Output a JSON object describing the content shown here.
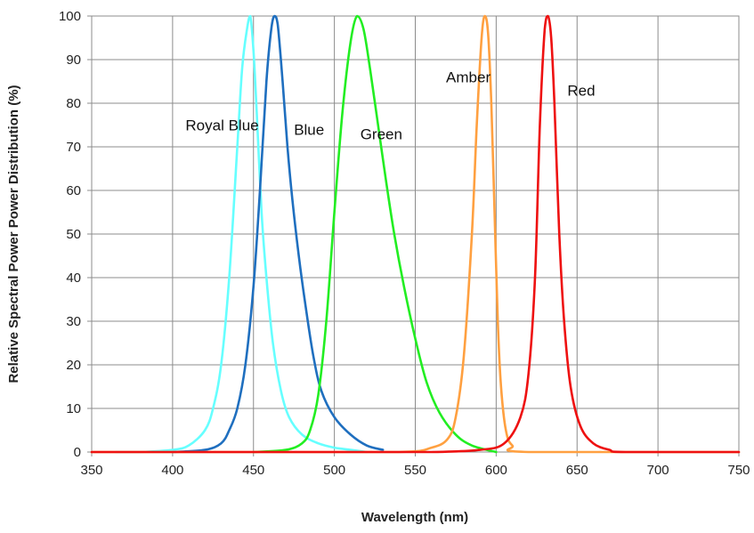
{
  "chart_data": {
    "type": "line",
    "title": "",
    "xlabel": "Wavelength (nm)",
    "ylabel": "Relative Spectral Power Power Distribution (%)",
    "xlim": [
      350,
      750
    ],
    "ylim": [
      0,
      100
    ],
    "xticks": [
      350,
      400,
      450,
      500,
      550,
      600,
      650,
      700,
      750
    ],
    "yticks": [
      0,
      10,
      20,
      30,
      40,
      50,
      60,
      70,
      80,
      90,
      100
    ],
    "grid": "vertical and horizontal",
    "legend": "none (inline labels)",
    "series": [
      {
        "name": "Royal Blue",
        "color": "#66ffff",
        "x": [
          365,
          380,
          400,
          410,
          420,
          425,
          430,
          435,
          440,
          443,
          446,
          448,
          450,
          452,
          455,
          458,
          462,
          467,
          472,
          480,
          490,
          500,
          510,
          520
        ],
        "y": [
          0,
          0,
          0.5,
          1.5,
          5,
          10,
          20,
          40,
          70,
          88,
          97,
          100,
          92,
          78,
          55,
          40,
          25,
          14,
          8,
          4,
          2,
          1,
          0.5,
          0
        ]
      },
      {
        "name": "Blue",
        "color": "#1f6fbf",
        "x": [
          400,
          420,
          430,
          435,
          440,
          445,
          450,
          454,
          458,
          461,
          463,
          465,
          468,
          471,
          474,
          478,
          482,
          487,
          492,
          500,
          510,
          520,
          530
        ],
        "y": [
          0,
          0.5,
          2,
          5,
          10,
          20,
          38,
          60,
          85,
          97,
          100,
          98,
          85,
          70,
          58,
          45,
          34,
          22,
          14,
          8,
          4,
          1.5,
          0.5
        ]
      },
      {
        "name": "Green",
        "color": "#22ee22",
        "x": [
          450,
          470,
          480,
          485,
          490,
          495,
          500,
          505,
          510,
          514,
          518,
          522,
          527,
          532,
          537,
          543,
          550,
          557,
          565,
          575,
          585,
          600
        ],
        "y": [
          0,
          0.5,
          2,
          5,
          13,
          30,
          55,
          78,
          94,
          100,
          97,
          88,
          75,
          62,
          50,
          38,
          26,
          16,
          9,
          4,
          1.5,
          0
        ]
      },
      {
        "name": "Amber",
        "color": "#ffa040",
        "x": [
          350,
          450,
          540,
          560,
          570,
          575,
          580,
          585,
          588,
          591,
          593,
          595,
          597,
          599,
          601,
          603,
          606,
          610,
          620,
          750
        ],
        "y": [
          0,
          0,
          0,
          1,
          3,
          8,
          22,
          50,
          75,
          95,
          100,
          96,
          80,
          55,
          30,
          15,
          5,
          1.5,
          0,
          0
        ]
      },
      {
        "name": "Red",
        "color": "#ee1111",
        "x": [
          350,
          500,
          560,
          590,
          605,
          615,
          620,
          624,
          627,
          630,
          632,
          634,
          636,
          639,
          642,
          646,
          652,
          660,
          670,
          680,
          750
        ],
        "y": [
          0,
          0,
          0,
          0.5,
          2,
          8,
          18,
          40,
          75,
          97,
          100,
          95,
          80,
          50,
          30,
          15,
          6,
          2,
          0.5,
          0,
          0
        ]
      }
    ],
    "annotations": [
      {
        "text": "Royal Blue",
        "x": 408,
        "y": 75
      },
      {
        "text": "Blue",
        "x": 475,
        "y": 74
      },
      {
        "text": "Green",
        "x": 516,
        "y": 73
      },
      {
        "text": "Amber",
        "x": 569,
        "y": 86
      },
      {
        "text": "Red",
        "x": 644,
        "y": 83
      }
    ]
  }
}
